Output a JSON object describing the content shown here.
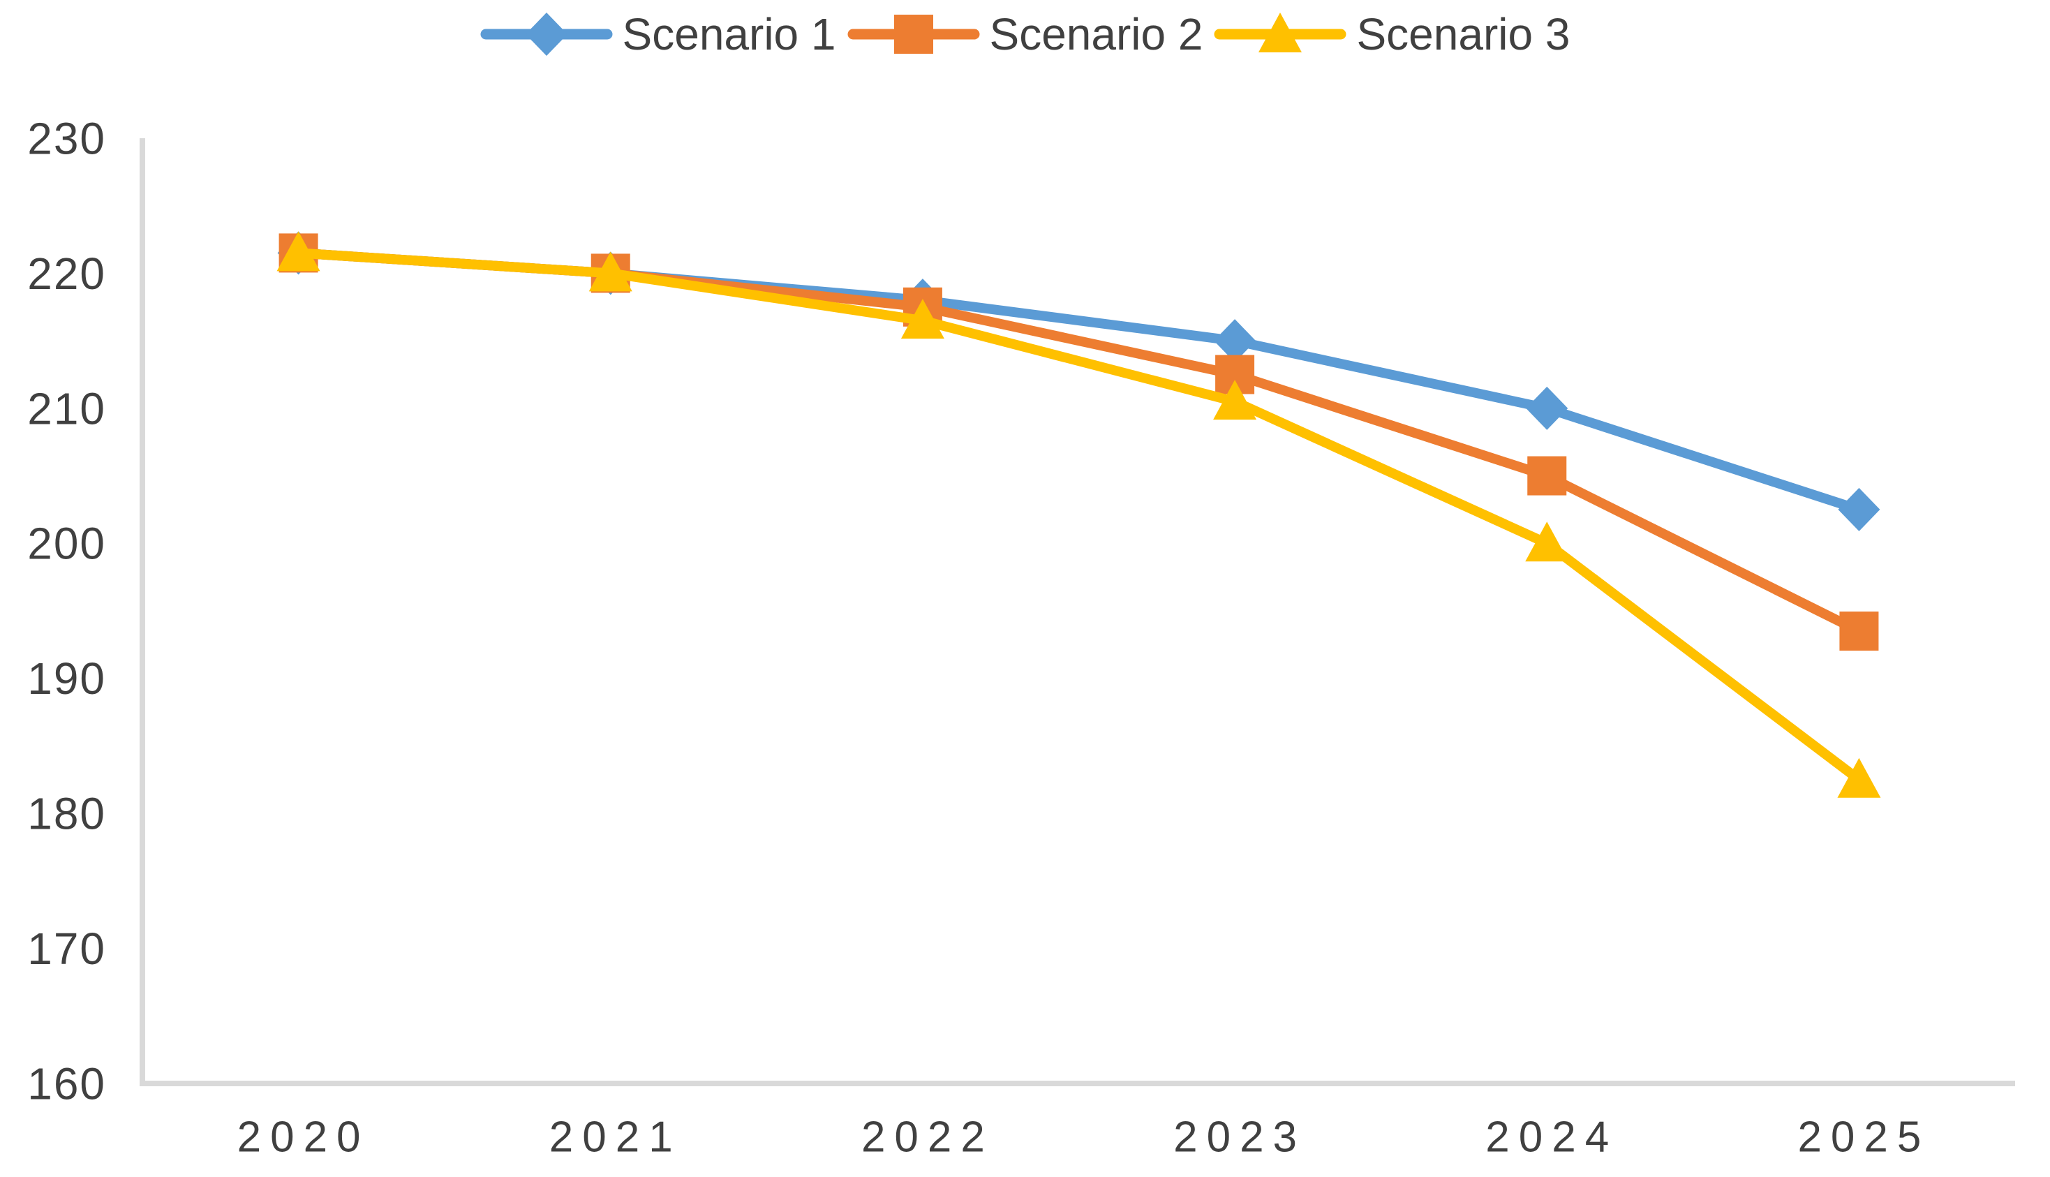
{
  "chart_data": {
    "type": "line",
    "title": "",
    "categories": [
      "2020",
      "2021",
      "2022",
      "2023",
      "2024",
      "2025"
    ],
    "series": [
      {
        "name": "Scenario 1",
        "color": "#5B9BD5",
        "marker": "diamond",
        "values": [
          221.5,
          220,
          218,
          215,
          210,
          202.5
        ]
      },
      {
        "name": "Scenario 2",
        "color": "#ED7D31",
        "marker": "square",
        "values": [
          221.5,
          220,
          217.5,
          212.5,
          205,
          193.5
        ]
      },
      {
        "name": "Scenario 3",
        "color": "#FFC000",
        "marker": "triangle",
        "values": [
          221.5,
          220,
          216.5,
          210.5,
          200,
          182.5
        ]
      }
    ],
    "xlabel": "",
    "ylabel": "",
    "y_axis": {
      "min": 160,
      "max": 230,
      "tick_interval": 10,
      "ticks": [
        160,
        170,
        180,
        190,
        200,
        210,
        220,
        230
      ]
    },
    "legend_position": "top",
    "gridlines": false
  },
  "styles": {
    "axis_line_color": "#D9D9D9",
    "text_color": "#404040",
    "background_color": "#FFFFFF",
    "series_colors": [
      "#5B9BD5",
      "#ED7D31",
      "#FFC000"
    ]
  }
}
